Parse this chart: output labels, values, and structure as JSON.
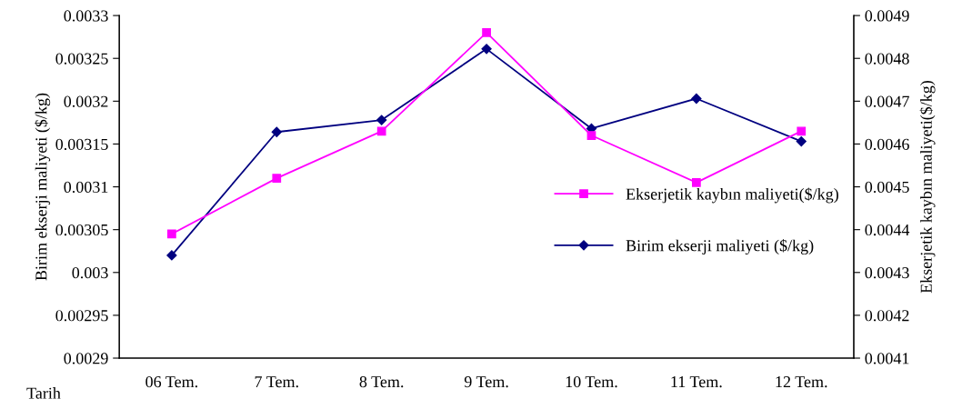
{
  "chart_data": {
    "type": "line",
    "xlabel": "Tarih",
    "ylabel": "Birim ekserji maliyeti ($/kg)",
    "y2label": "Ekserjetik kaybın maliyeti($/kg)",
    "categories": [
      "06 Tem.",
      "7 Tem.",
      "8 Tem.",
      "9 Tem.",
      "10 Tem.",
      "11 Tem.",
      "12 Tem."
    ],
    "series": [
      {
        "name": "Ekserjetik kaybın maliyeti($/kg)",
        "color": "#ff00ff",
        "marker": "square",
        "axis": "y2",
        "values": [
          0.00439,
          0.00452,
          0.00463,
          0.00486,
          0.00462,
          0.00451,
          0.00463
        ]
      },
      {
        "name": "Birim ekserji maliyeti ($/kg)",
        "color": "#000080",
        "marker": "diamond",
        "values": [
          0.00302,
          0.003164,
          0.003178,
          0.003261,
          0.003168,
          0.003203,
          0.003153
        ]
      }
    ],
    "ylim": [
      0.0029,
      0.0033
    ],
    "yticks": [
      0.0029,
      0.00295,
      0.003,
      0.00305,
      0.0031,
      0.00315,
      0.0032,
      0.00325,
      0.0033
    ],
    "y2lim": [
      0.0041,
      0.0049
    ],
    "y2ticks": [
      0.0041,
      0.0042,
      0.0043,
      0.0044,
      0.0045,
      0.0046,
      0.0047,
      0.0048,
      0.0049
    ],
    "grid": false,
    "legend": "right",
    "line_style": "solid"
  }
}
